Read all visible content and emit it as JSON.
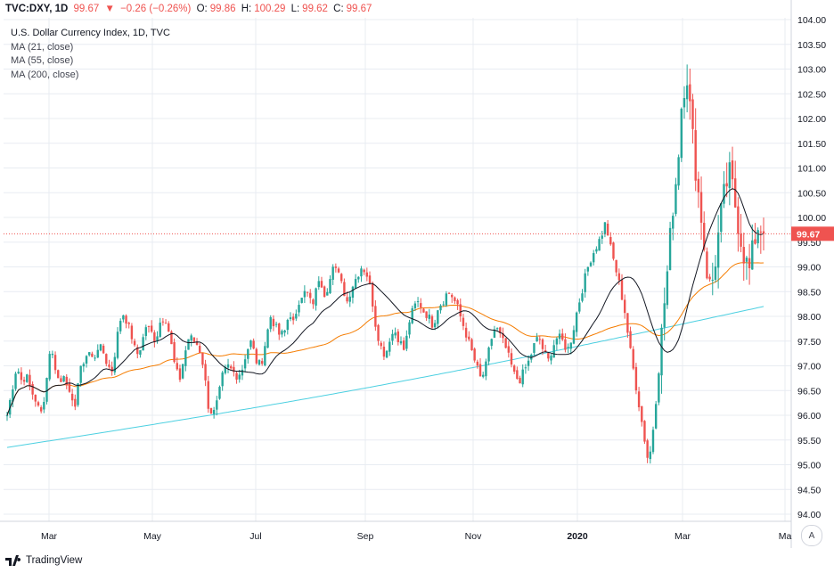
{
  "header": {
    "symbol": "TVC:DXY, 1D",
    "price": "99.67",
    "arrow": "▼",
    "change": "−0.26 (−0.26%)",
    "o_label": "O:",
    "o_value": "99.86",
    "h_label": "H:",
    "h_value": "100.29",
    "l_label": "L:",
    "l_value": "99.62",
    "c_label": "C:",
    "c_value": "99.67"
  },
  "legend": {
    "title": "U.S. Dollar Currency Index, 1D, TVC",
    "ma1": "MA (21, close)",
    "ma2": "MA (55, close)",
    "ma3": "MA (200, close)"
  },
  "footer": {
    "brand": "TradingView",
    "auto_label": "A"
  },
  "colors": {
    "up": "#26a69a",
    "down": "#ef5350",
    "ma21": "#131722",
    "ma55": "#f57c00",
    "ma200": "#4dd0e1",
    "grid": "#e8ecf2",
    "price_tag": "#ef5350"
  },
  "chart_data": {
    "type": "candlestick",
    "y_ticks": [
      "94.00",
      "94.50",
      "95.00",
      "95.50",
      "96.00",
      "96.50",
      "97.00",
      "97.50",
      "98.00",
      "98.50",
      "99.00",
      "99.50",
      "100.00",
      "100.50",
      "101.00",
      "101.50",
      "102.00",
      "102.50",
      "103.00",
      "103.50",
      "104.00"
    ],
    "x_ticks": [
      "Mar",
      "May",
      "Jul",
      "Sep",
      "Nov",
      "2020",
      "Mar",
      "Ma"
    ],
    "ylim": [
      94.0,
      104.0
    ],
    "last_price_label": "99.67",
    "last_price": 99.67,
    "grid": true,
    "close_path": [
      96.0,
      96.5,
      97.0,
      96.7,
      96.8,
      96.5,
      96.3,
      96.0,
      96.5,
      97.4,
      97.0,
      96.6,
      96.9,
      96.4,
      96.1,
      96.8,
      97.1,
      97.3,
      97.1,
      97.4,
      97.3,
      97.0,
      96.9,
      97.6,
      98.1,
      97.9,
      97.6,
      97.2,
      97.4,
      97.8,
      97.7,
      97.5,
      97.9,
      98.0,
      97.6,
      97.0,
      96.7,
      97.2,
      97.6,
      97.5,
      97.4,
      97.0,
      96.2,
      96.0,
      96.3,
      96.8,
      97.0,
      96.9,
      96.8,
      96.9,
      97.3,
      97.5,
      97.1,
      97.0,
      97.5,
      98.0,
      97.8,
      97.6,
      97.7,
      98.1,
      97.8,
      98.3,
      98.6,
      98.4,
      98.2,
      98.8,
      98.4,
      98.6,
      99.1,
      98.9,
      98.6,
      98.3,
      98.6,
      98.8,
      99.0,
      98.9,
      98.5,
      97.8,
      97.4,
      97.2,
      97.6,
      97.7,
      97.5,
      97.3,
      97.9,
      98.2,
      98.3,
      98.1,
      98.0,
      97.8,
      98.2,
      98.3,
      98.5,
      98.4,
      98.2,
      97.9,
      97.6,
      97.3,
      97.0,
      96.7,
      97.0,
      97.5,
      97.8,
      97.6,
      97.4,
      97.1,
      96.8,
      96.7,
      96.9,
      97.1,
      97.4,
      97.6,
      97.3,
      97.1,
      97.4,
      97.6,
      97.5,
      97.3,
      97.6,
      98.1,
      98.5,
      98.9,
      99.2,
      99.4,
      99.6,
      99.9,
      99.4,
      99.0,
      98.6,
      98.1,
      97.4,
      96.8,
      96.2,
      95.6,
      95.0,
      95.8,
      96.8,
      98.0,
      99.0,
      100.2,
      101.0,
      102.5,
      102.9,
      101.8,
      100.8,
      100.0,
      99.0,
      98.5,
      99.2,
      100.0,
      100.6,
      100.9,
      100.3,
      99.7,
      99.2,
      98.9,
      99.5,
      99.9,
      99.67
    ]
  }
}
